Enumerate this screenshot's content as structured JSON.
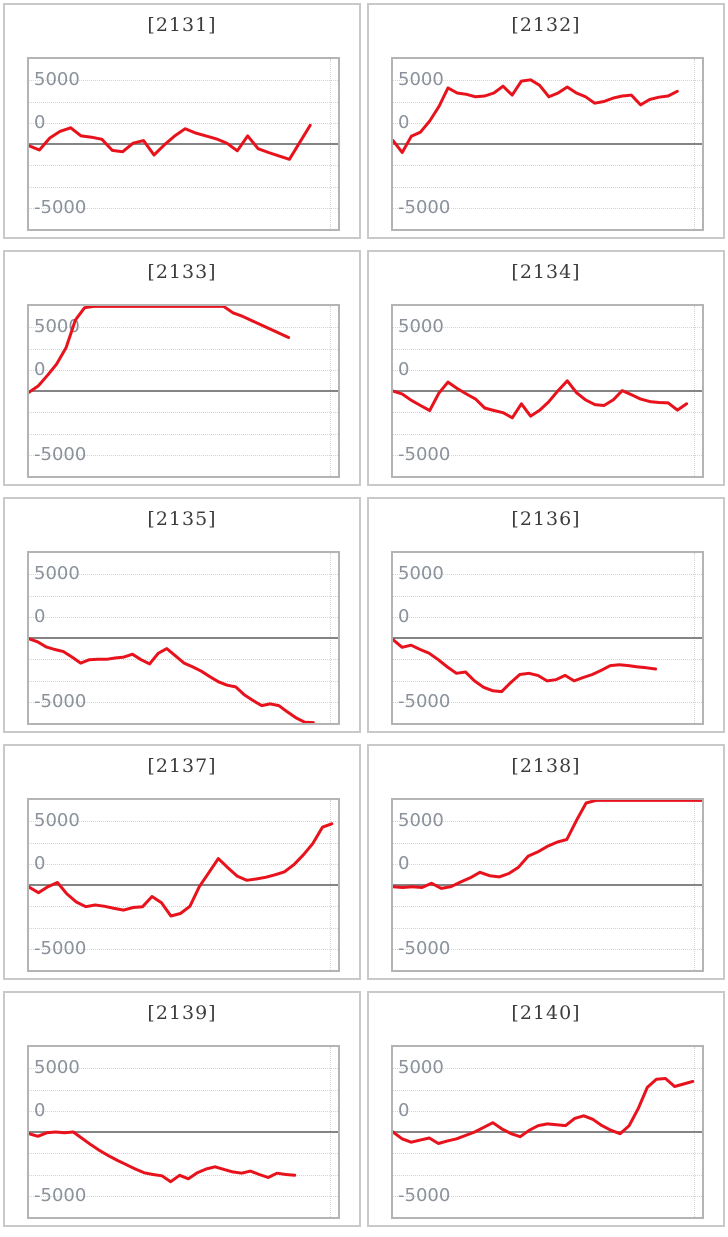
{
  "page": {
    "background": "#ffffff"
  },
  "colors": {
    "line": "#e8121c",
    "axis_label": "#8b929b",
    "title_text": "#3c3c3c",
    "plot_border": "#b4b4b4",
    "cell_border": "#c9c9c9",
    "zero_line": "#848484",
    "gridline": "#d4d4d4"
  },
  "chart_data": [
    {
      "type": "line",
      "title": "[2131]",
      "ylim": [
        -10000,
        10000
      ],
      "grid_step": 2500,
      "grid": "dotted",
      "yticks": [
        5000,
        0,
        -5000
      ],
      "ytick_labels": [
        "5000",
        "0",
        "-5000"
      ],
      "x_end_fraction": 0.91,
      "values": [
        -200,
        -700,
        700,
        1500,
        1900,
        950,
        800,
        550,
        -750,
        -900,
        100,
        400,
        -1300,
        -100,
        950,
        1800,
        1300,
        950,
        600,
        100,
        -800,
        950,
        -550,
        -1000,
        -1400,
        -1800,
        200,
        2200
      ]
    },
    {
      "type": "line",
      "title": "[2132]",
      "ylim": [
        -10000,
        10000
      ],
      "grid_step": 2500,
      "grid": "dotted",
      "yticks": [
        5000,
        0,
        -5000
      ],
      "ytick_labels": [
        "5000",
        "0",
        "-5000"
      ],
      "x_end_fraction": 0.92,
      "values": [
        400,
        -1000,
        900,
        1400,
        2700,
        4400,
        6600,
        6000,
        5850,
        5550,
        5650,
        6000,
        6800,
        5750,
        7400,
        7550,
        6900,
        5550,
        6000,
        6700,
        6000,
        5550,
        4800,
        5000,
        5400,
        5650,
        5750,
        4600,
        5250,
        5500,
        5650,
        6200
      ]
    },
    {
      "type": "line",
      "title": "[2133]",
      "ylim": [
        -10000,
        10000
      ],
      "grid_step": 2500,
      "grid": "dotted",
      "yticks": [
        5000,
        0,
        -5000
      ],
      "ytick_labels": [
        "5000",
        "0",
        "-5000"
      ],
      "x_end_fraction": 0.84,
      "values": [
        -150,
        600,
        1850,
        3200,
        5100,
        8350,
        9800,
        9950,
        9950,
        9950,
        9950,
        9950,
        9950,
        9950,
        9950,
        9950,
        9950,
        9950,
        9950,
        9950,
        9950,
        9950,
        9200,
        8800,
        8300,
        7800,
        7300,
        6800,
        6300
      ]
    },
    {
      "type": "line",
      "title": "[2134]",
      "ylim": [
        -10000,
        10000
      ],
      "grid_step": 2500,
      "grid": "dotted",
      "yticks": [
        5000,
        0,
        -5000
      ],
      "ytick_labels": [
        "5000",
        "0",
        "-5000"
      ],
      "x_end_fraction": 0.95,
      "values": [
        0,
        -350,
        -1100,
        -1700,
        -2300,
        -250,
        1050,
        300,
        -350,
        -950,
        -2000,
        -2300,
        -2550,
        -3150,
        -1500,
        -2950,
        -2250,
        -1250,
        50,
        1200,
        -200,
        -1050,
        -1600,
        -1700,
        -1050,
        50,
        -450,
        -950,
        -1250,
        -1350,
        -1400,
        -2250,
        -1500
      ]
    },
    {
      "type": "line",
      "title": "[2135]",
      "ylim": [
        -10000,
        10000
      ],
      "grid_step": 2500,
      "grid": "dotted",
      "yticks": [
        5000,
        0,
        -5000
      ],
      "ytick_labels": [
        "5000",
        "0",
        "-5000"
      ],
      "x_end_fraction": 0.92,
      "values": [
        -100,
        -450,
        -1050,
        -1350,
        -1600,
        -2250,
        -2950,
        -2550,
        -2500,
        -2500,
        -2350,
        -2250,
        -1900,
        -2550,
        -3050,
        -1800,
        -1250,
        -2100,
        -2950,
        -3400,
        -3900,
        -4550,
        -5150,
        -5550,
        -5750,
        -6700,
        -7350,
        -7950,
        -7750,
        -7950,
        -8700,
        -9400,
        -9900,
        -9950
      ]
    },
    {
      "type": "line",
      "title": "[2136]",
      "ylim": [
        -10000,
        10000
      ],
      "grid_step": 2500,
      "grid": "dotted",
      "yticks": [
        5000,
        0,
        -5000
      ],
      "ytick_labels": [
        "5000",
        "0",
        "-5000"
      ],
      "x_end_fraction": 0.85,
      "values": [
        -200,
        -1100,
        -850,
        -1350,
        -1800,
        -2550,
        -3400,
        -4150,
        -4000,
        -5050,
        -5800,
        -6200,
        -6300,
        -5250,
        -4300,
        -4150,
        -4400,
        -5050,
        -4900,
        -4400,
        -5050,
        -4650,
        -4300,
        -3800,
        -3250,
        -3150,
        -3250,
        -3400,
        -3500,
        -3650
      ]
    },
    {
      "type": "line",
      "title": "[2137]",
      "ylim": [
        -10000,
        10000
      ],
      "grid_step": 2500,
      "grid": "dotted",
      "yticks": [
        5000,
        0,
        -5000
      ],
      "ytick_labels": [
        "5000",
        "0",
        "-5000"
      ],
      "x_end_fraction": 0.98,
      "values": [
        -250,
        -900,
        -200,
        300,
        -1050,
        -2000,
        -2550,
        -2350,
        -2500,
        -2750,
        -2950,
        -2650,
        -2550,
        -1350,
        -2100,
        -3650,
        -3350,
        -2500,
        -200,
        1450,
        3100,
        2050,
        1050,
        550,
        700,
        900,
        1200,
        1550,
        2400,
        3550,
        4900,
        6800,
        7200
      ]
    },
    {
      "type": "line",
      "title": "[2138]",
      "ylim": [
        -10000,
        10000
      ],
      "grid_step": 2500,
      "grid": "dotted",
      "yticks": [
        5000,
        0,
        -5000
      ],
      "ytick_labels": [
        "5000",
        "0",
        "-5000"
      ],
      "x_end_fraction": 1.0,
      "values": [
        -200,
        -300,
        -200,
        -300,
        200,
        -400,
        -200,
        350,
        850,
        1500,
        1100,
        950,
        1350,
        2100,
        3400,
        3900,
        4550,
        5050,
        5350,
        7600,
        9650,
        9950,
        9950,
        9950,
        9950,
        9950,
        9950,
        9950,
        9950,
        9950,
        9950,
        9950,
        9950
      ]
    },
    {
      "type": "line",
      "title": "[2139]",
      "ylim": [
        -10000,
        10000
      ],
      "grid_step": 2500,
      "grid": "dotted",
      "yticks": [
        5000,
        0,
        -5000
      ],
      "ytick_labels": [
        "5000",
        "0",
        "-5000"
      ],
      "x_end_fraction": 0.86,
      "values": [
        -200,
        -500,
        -100,
        0,
        -100,
        0,
        -750,
        -1500,
        -2200,
        -2800,
        -3350,
        -3850,
        -4350,
        -4800,
        -5000,
        -5150,
        -5850,
        -5100,
        -5500,
        -4800,
        -4350,
        -4100,
        -4400,
        -4700,
        -4850,
        -4600,
        -5000,
        -5350,
        -4850,
        -5000,
        -5100
      ]
    },
    {
      "type": "line",
      "title": "[2140]",
      "ylim": [
        -10000,
        10000
      ],
      "grid_step": 2500,
      "grid": "dotted",
      "yticks": [
        5000,
        0,
        -5000
      ],
      "ytick_labels": [
        "5000",
        "0",
        "-5000"
      ],
      "x_end_fraction": 0.97,
      "values": [
        0,
        -800,
        -1200,
        -950,
        -700,
        -1350,
        -1050,
        -800,
        -400,
        0,
        550,
        1100,
        350,
        -200,
        -550,
        200,
        750,
        950,
        850,
        750,
        1600,
        1900,
        1500,
        750,
        200,
        -200,
        750,
        2750,
        5250,
        6200,
        6300,
        5350,
        5650,
        5950
      ]
    }
  ]
}
